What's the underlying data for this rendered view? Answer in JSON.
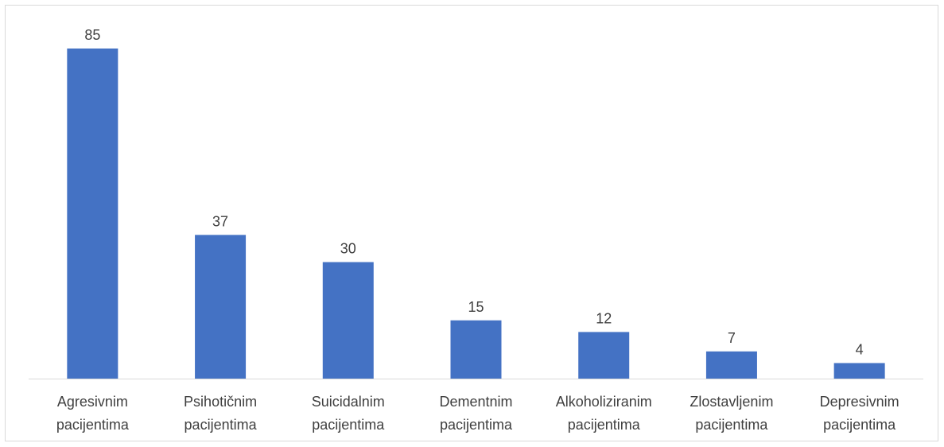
{
  "chart_data": {
    "type": "bar",
    "categories": [
      [
        "Agresivnim",
        "pacijentima"
      ],
      [
        "Psihotičnim",
        "pacijentima"
      ],
      [
        "Suicidalnim",
        "pacijentima"
      ],
      [
        "Dementnim",
        "pacijentima"
      ],
      [
        "Alkoholiziranim",
        "pacijentima"
      ],
      [
        "Zlostavljenim",
        "pacijentima"
      ],
      [
        "Depresivnim",
        "pacijentima"
      ]
    ],
    "values": [
      85,
      37,
      30,
      15,
      12,
      7,
      4
    ],
    "data_labels": [
      "85",
      "37",
      "30",
      "15",
      "12",
      "7",
      "4"
    ],
    "bar_color": "#4472c4",
    "ylim": [
      0,
      85
    ],
    "grid": false,
    "legend": "none"
  }
}
